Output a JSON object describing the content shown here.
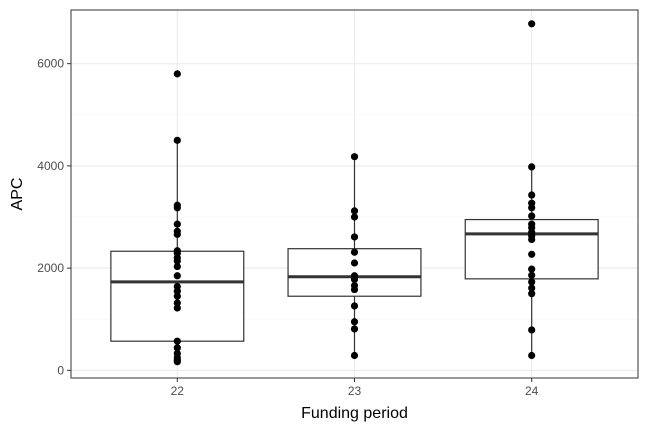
{
  "chart_data": {
    "type": "boxplot",
    "title": "",
    "xlabel": "Funding period",
    "ylabel": "APC",
    "categories": [
      "22",
      "23",
      "24"
    ],
    "ylim": [
      -150,
      7050
    ],
    "yticks": [
      0,
      2000,
      4000,
      6000
    ],
    "grid": true,
    "legend": "none",
    "boxes": [
      {
        "category": "22",
        "whisker_low": 170,
        "q1": 570,
        "median": 1730,
        "q3": 2330,
        "whisker_high": 4500
      },
      {
        "category": "23",
        "whisker_low": 290,
        "q1": 1450,
        "median": 1830,
        "q3": 2380,
        "whisker_high": 4180
      },
      {
        "category": "24",
        "whisker_low": 290,
        "q1": 1790,
        "median": 2670,
        "q3": 2950,
        "whisker_high": 3980
      }
    ],
    "points": [
      {
        "x": "22",
        "y": [
          5800,
          4500,
          3230,
          3180,
          2860,
          2720,
          2660,
          2340,
          2290,
          2200,
          2140,
          2030,
          1850,
          1640,
          1550,
          1450,
          1320,
          1220,
          570,
          440,
          330,
          250,
          200,
          170
        ]
      },
      {
        "x": "23",
        "y": [
          4180,
          3120,
          3000,
          2610,
          2310,
          2100,
          1850,
          1780,
          1660,
          1580,
          1260,
          950,
          810,
          290
        ]
      },
      {
        "x": "24",
        "y": [
          6780,
          3980,
          3430,
          3270,
          3180,
          3020,
          2860,
          2790,
          2700,
          2630,
          2560,
          2270,
          1980,
          1860,
          1730,
          1610,
          1500,
          790,
          290
        ]
      }
    ]
  },
  "colors": {
    "panel_border": "#333333",
    "grid_major": "#ebebeb",
    "grid_minor": "#f5f5f5",
    "box_stroke": "#333333",
    "point": "#000000"
  }
}
